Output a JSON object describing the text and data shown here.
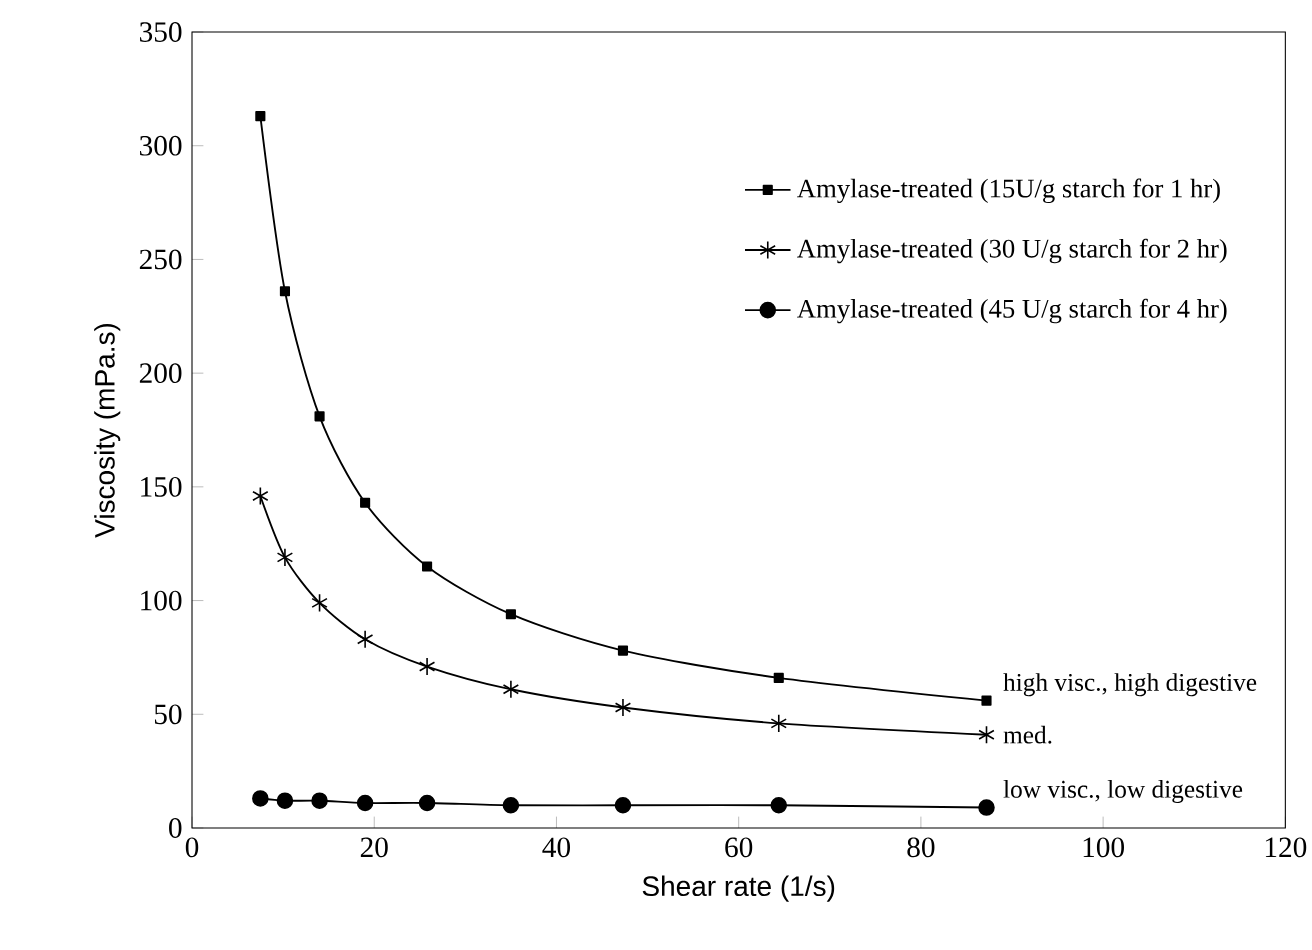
{
  "chart_data": {
    "type": "line",
    "xlabel": "Shear rate (1/s)",
    "ylabel": "Viscosity (mPa.s)",
    "x": [
      7.5,
      10.2,
      14,
      19,
      25.8,
      35,
      47.3,
      64.4,
      87.2
    ],
    "series": [
      {
        "name": "Amylase-treated (15U/g starch for 1 hr)",
        "color": "#000000",
        "marker": "square",
        "values": [
          313,
          236,
          181,
          143,
          115,
          94,
          78,
          66,
          56
        ]
      },
      {
        "name": "Amylase-treated (30 U/g starch for 2 hr)",
        "color": "#000000",
        "marker": "cross",
        "values": [
          146,
          119,
          99,
          83,
          71,
          61,
          53,
          46,
          41
        ]
      },
      {
        "name": "Amylase-treated (45 U/g starch for 4 hr)",
        "color": "#000000",
        "marker": "circle",
        "values": [
          13,
          12,
          12,
          11,
          11,
          10,
          10,
          10,
          9
        ]
      }
    ],
    "xlim": [
      0,
      120
    ],
    "xticks": [
      0,
      20,
      40,
      60,
      80,
      100,
      120
    ],
    "ylim": [
      0,
      350
    ],
    "yticks": [
      0,
      50,
      100,
      150,
      200,
      250,
      300,
      350
    ],
    "grid": false,
    "legend": "top right",
    "line_style": "solid",
    "annotations": [
      "high visc., high digestive",
      "med.",
      "low visc., low digestive"
    ]
  }
}
